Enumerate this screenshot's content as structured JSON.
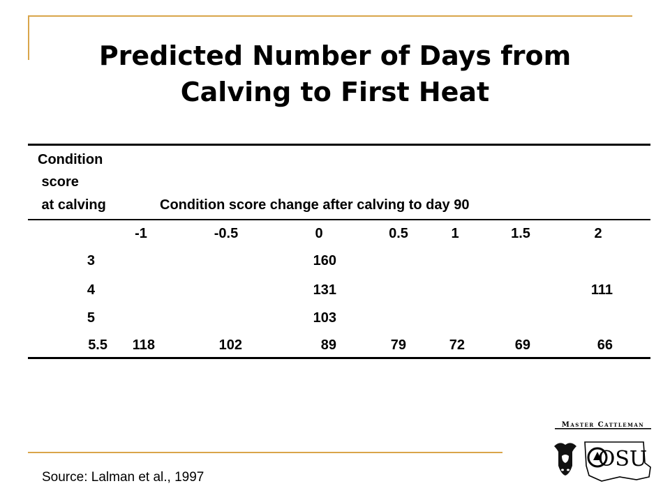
{
  "title": {
    "line1": "Predicted Number of Days from",
    "line2": "Calving to First Heat"
  },
  "table": {
    "row_header": [
      "Condition",
      " score",
      " at calving"
    ],
    "column_group_header": "Condition score change after calving to day 90",
    "columns": [
      "-1",
      "-0.5",
      "0",
      "0.5",
      "1",
      "1.5",
      "2"
    ],
    "rows": [
      {
        "score": "3",
        "values": [
          "",
          "",
          "160",
          "",
          "",
          "",
          ""
        ]
      },
      {
        "score": "4",
        "values": [
          "",
          "",
          "131",
          "",
          "",
          "",
          "111"
        ]
      },
      {
        "score": "5",
        "values": [
          "",
          "",
          "103",
          "",
          "",
          "",
          ""
        ]
      },
      {
        "score": "5.5",
        "values": [
          "118",
          "102",
          "89",
          "79",
          "72",
          "69",
          "66"
        ]
      }
    ]
  },
  "source": "Source: Lalman et al., 1997",
  "logo": {
    "top_text": "Master Cattleman",
    "mark_text": "OSU",
    "icon": "steer-head-icon"
  },
  "colors": {
    "accent": "#d9a54a",
    "text": "#000000"
  }
}
